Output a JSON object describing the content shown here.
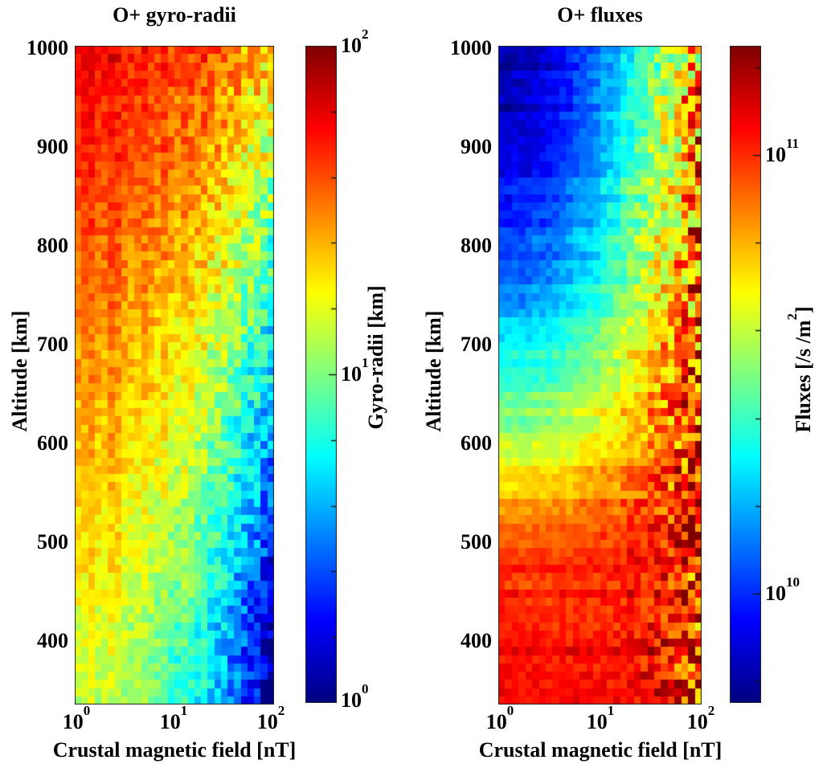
{
  "chart_data": [
    {
      "type": "heatmap",
      "title": "O+ gyro-radii",
      "xlabel": "Crustal magnetic field [nT]",
      "ylabel": "Altitude [km]",
      "x_scale": "log",
      "x_range_nT": [
        1,
        100
      ],
      "x_ticks": [
        {
          "base": "10",
          "exp": "0"
        },
        {
          "base": "10",
          "exp": "1"
        },
        {
          "base": "10",
          "exp": "2"
        }
      ],
      "y_ticks": [
        "1000",
        "900",
        "800",
        "700",
        "600",
        "500",
        "400"
      ],
      "y_range_km": [
        335,
        1000
      ],
      "colormap": "jet",
      "colorbar": {
        "label_pre": "Gyro-radii [km]",
        "label_sup": "",
        "label_post": "",
        "scale": "log",
        "scale_min_log10": 0,
        "scale_max_log10": 2,
        "ticks": [
          {
            "base": "10",
            "exp": "2"
          },
          {
            "base": "10",
            "exp": "1"
          },
          {
            "base": "10",
            "exp": "0"
          }
        ]
      },
      "grid": {
        "log10_B_nT_columns": [
          0,
          0.17,
          0.33,
          0.5,
          0.67,
          0.83,
          1.0,
          1.17,
          1.33,
          1.5,
          1.67,
          1.83,
          2.0
        ],
        "altitude_km_rows": [
          1000,
          952,
          905,
          858,
          810,
          763,
          715,
          668,
          620,
          573,
          525,
          478,
          430,
          383,
          335
        ],
        "log10_gyroradius_km_values": [
          [
            1.77,
            1.77,
            1.76,
            1.74,
            1.72,
            1.7,
            1.67,
            1.63,
            1.58,
            1.53,
            1.48,
            1.42,
            1.35
          ],
          [
            1.73,
            1.72,
            1.71,
            1.7,
            1.67,
            1.64,
            1.61,
            1.57,
            1.52,
            1.46,
            1.4,
            1.33,
            1.26
          ],
          [
            1.68,
            1.68,
            1.67,
            1.65,
            1.62,
            1.59,
            1.55,
            1.51,
            1.45,
            1.39,
            1.32,
            1.25,
            1.16
          ],
          [
            1.64,
            1.63,
            1.62,
            1.6,
            1.57,
            1.54,
            1.5,
            1.44,
            1.39,
            1.32,
            1.24,
            1.16,
            1.07
          ],
          [
            1.59,
            1.59,
            1.58,
            1.55,
            1.52,
            1.49,
            1.44,
            1.38,
            1.32,
            1.25,
            1.17,
            1.08,
            0.98
          ],
          [
            1.55,
            1.54,
            1.53,
            1.51,
            1.47,
            1.43,
            1.38,
            1.32,
            1.25,
            1.18,
            1.09,
            0.99,
            0.89
          ],
          [
            1.5,
            1.5,
            1.48,
            1.46,
            1.43,
            1.38,
            1.33,
            1.26,
            1.19,
            1.1,
            1.01,
            0.91,
            0.79
          ],
          [
            1.46,
            1.45,
            1.44,
            1.41,
            1.38,
            1.33,
            1.27,
            1.2,
            1.12,
            1.03,
            0.93,
            0.82,
            0.7
          ],
          [
            1.42,
            1.41,
            1.39,
            1.37,
            1.33,
            1.28,
            1.21,
            1.14,
            1.06,
            0.96,
            0.85,
            0.74,
            0.61
          ],
          [
            1.37,
            1.37,
            1.35,
            1.32,
            1.28,
            1.22,
            1.16,
            1.08,
            0.99,
            0.89,
            0.78,
            0.65,
            0.51
          ],
          [
            1.33,
            1.32,
            1.3,
            1.27,
            1.23,
            1.17,
            1.1,
            1.02,
            0.92,
            0.82,
            0.7,
            0.57,
            0.42
          ],
          [
            1.28,
            1.28,
            1.26,
            1.22,
            1.18,
            1.12,
            1.04,
            0.96,
            0.86,
            0.75,
            0.62,
            0.48,
            0.33
          ],
          [
            1.24,
            1.23,
            1.21,
            1.18,
            1.13,
            1.06,
            0.99,
            0.9,
            0.79,
            0.67,
            0.54,
            0.4,
            0.24
          ],
          [
            1.19,
            1.19,
            1.17,
            1.13,
            1.08,
            1.01,
            0.93,
            0.84,
            0.73,
            0.6,
            0.46,
            0.31,
            0.14
          ],
          [
            1.15,
            1.14,
            1.12,
            1.08,
            1.03,
            0.96,
            0.88,
            0.78,
            0.66,
            0.53,
            0.39,
            0.23,
            0.05
          ]
        ]
      }
    },
    {
      "type": "heatmap",
      "title": "O+ fluxes",
      "xlabel": "Crustal magnetic field [nT]",
      "ylabel": "Altitude [km]",
      "x_scale": "log",
      "x_range_nT": [
        1,
        100
      ],
      "x_ticks": [
        {
          "base": "10",
          "exp": "0"
        },
        {
          "base": "10",
          "exp": "1"
        },
        {
          "base": "10",
          "exp": "2"
        }
      ],
      "y_ticks": [
        "1000",
        "900",
        "800",
        "700",
        "600",
        "500",
        "400"
      ],
      "y_range_km": [
        335,
        1000
      ],
      "colormap": "jet",
      "colorbar": {
        "label_pre": "Fluxes [/s /m",
        "label_sup": "2",
        "label_post": "]",
        "scale": "log",
        "scale_min_log10": 9.75,
        "scale_max_log10": 11.25,
        "ticks": [
          {
            "base": "10",
            "exp": "11"
          },
          {
            "base": "10",
            "exp": "10"
          }
        ]
      },
      "grid": {
        "log10_B_nT_columns": [
          0,
          0.17,
          0.33,
          0.5,
          0.67,
          0.83,
          1.0,
          1.17,
          1.33,
          1.5,
          1.67,
          1.83,
          2.0
        ],
        "altitude_km_rows": [
          1000,
          952,
          905,
          858,
          810,
          763,
          715,
          668,
          620,
          573,
          525,
          478,
          430,
          383,
          335
        ],
        "log10_flux_per_s_m2_values": [
          [
            9.8,
            9.81,
            9.85,
            9.9,
            9.96,
            10.03,
            10.11,
            10.21,
            10.31,
            10.43,
            10.55,
            10.68,
            10.82
          ],
          [
            9.82,
            9.84,
            9.87,
            9.92,
            9.98,
            10.06,
            10.15,
            10.24,
            10.35,
            10.47,
            10.6,
            10.73,
            10.88
          ],
          [
            9.86,
            9.88,
            9.91,
            9.96,
            10.02,
            10.1,
            10.19,
            10.28,
            10.39,
            10.51,
            10.64,
            10.77,
            10.92
          ],
          [
            9.92,
            9.94,
            9.97,
            10.02,
            10.08,
            10.15,
            10.24,
            10.33,
            10.44,
            10.55,
            10.68,
            10.81,
            10.95
          ],
          [
            9.99,
            10.0,
            10.04,
            10.08,
            10.14,
            10.21,
            10.29,
            10.38,
            10.48,
            10.59,
            10.71,
            10.84,
            10.97
          ],
          [
            10.09,
            10.1,
            10.13,
            10.18,
            10.23,
            10.29,
            10.37,
            10.45,
            10.54,
            10.64,
            10.75,
            10.87,
            10.99
          ],
          [
            10.22,
            10.23,
            10.26,
            10.29,
            10.34,
            10.4,
            10.46,
            10.53,
            10.61,
            10.7,
            10.79,
            10.89,
            11.0
          ],
          [
            10.36,
            10.37,
            10.39,
            10.42,
            10.46,
            10.51,
            10.56,
            10.62,
            10.69,
            10.76,
            10.84,
            10.93,
            11.02
          ],
          [
            10.5,
            10.51,
            10.53,
            10.55,
            10.58,
            10.62,
            10.67,
            10.72,
            10.77,
            10.83,
            10.9,
            10.97,
            11.04
          ],
          [
            10.68,
            10.69,
            10.7,
            10.72,
            10.74,
            10.77,
            10.8,
            10.83,
            10.87,
            10.91,
            10.96,
            11.01,
            11.06
          ],
          [
            10.86,
            10.86,
            10.87,
            10.88,
            10.89,
            10.91,
            10.93,
            10.95,
            10.97,
            10.99,
            11.02,
            11.05,
            11.08
          ],
          [
            10.97,
            10.97,
            10.98,
            10.98,
            10.99,
            10.99,
            11.0,
            11.01,
            11.03,
            11.04,
            11.05,
            11.06,
            11.08
          ],
          [
            11.02,
            11.02,
            11.02,
            11.03,
            11.03,
            11.03,
            11.04,
            11.04,
            11.05,
            11.06,
            11.06,
            11.07,
            11.08
          ],
          [
            11.04,
            11.04,
            11.04,
            11.04,
            11.05,
            11.05,
            11.05,
            11.06,
            11.06,
            11.06,
            11.07,
            11.07,
            11.08
          ],
          [
            11.05,
            11.05,
            11.05,
            11.05,
            11.05,
            11.06,
            11.06,
            11.06,
            11.06,
            11.07,
            11.07,
            11.07,
            11.08
          ]
        ]
      }
    }
  ],
  "colors": {
    "background": "#ffffff",
    "text": "#000000",
    "frame": "#222222",
    "colorbar_dark_red_top": "#7f0000",
    "colorbar_dark_blue_bottom": "#00008f"
  }
}
